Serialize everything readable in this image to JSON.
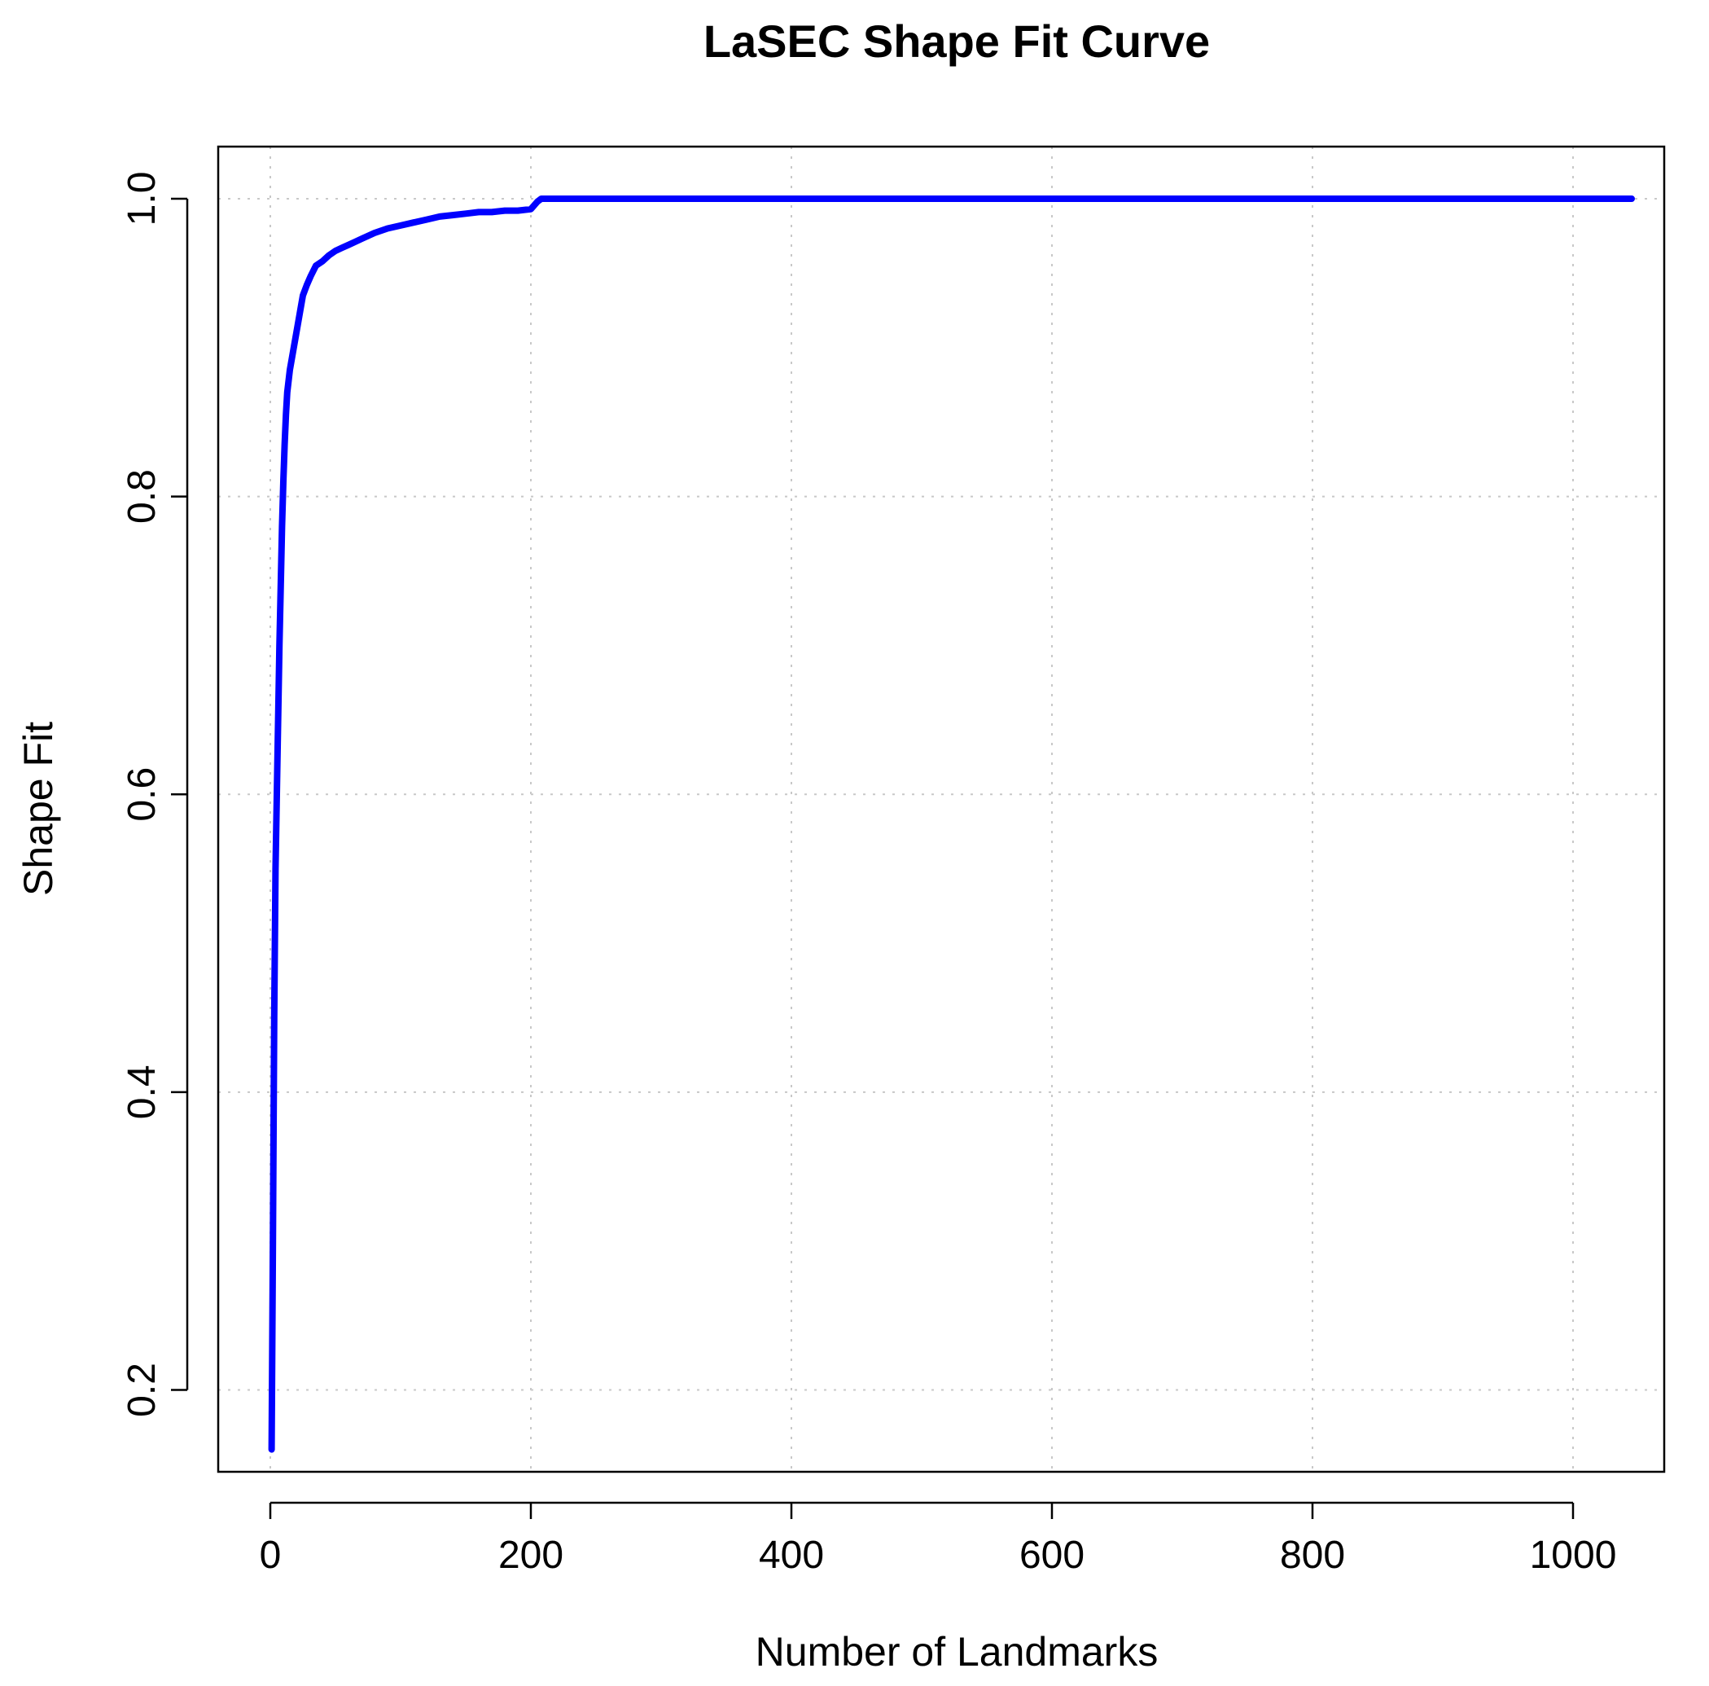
{
  "chart_data": {
    "type": "line",
    "title": "LaSEC Shape Fit Curve",
    "xlabel": "Number of Landmarks",
    "ylabel": "Shape Fit",
    "xlim": [
      -40,
      1070
    ],
    "ylim": [
      0.145,
      1.035
    ],
    "xticks": [
      0,
      200,
      400,
      600,
      800,
      1000
    ],
    "xtick_labels": [
      "0",
      "200",
      "400",
      "600",
      "800",
      "1000"
    ],
    "yticks": [
      0.2,
      0.4,
      0.6,
      0.8,
      1.0
    ],
    "ytick_labels": [
      "0.2",
      "0.4",
      "0.6",
      "0.8",
      "1.0"
    ],
    "grid": true,
    "series": [
      {
        "color": "#0000ff",
        "x": [
          1,
          2,
          3,
          4,
          5,
          6,
          7,
          8,
          9,
          10,
          11,
          12,
          13,
          15,
          17,
          19,
          21,
          23,
          25,
          28,
          31,
          35,
          40,
          45,
          50,
          55,
          60,
          65,
          70,
          80,
          90,
          100,
          110,
          120,
          130,
          140,
          150,
          160,
          170,
          180,
          190,
          200,
          202,
          205,
          208,
          210,
          300,
          400,
          500,
          600,
          700,
          800,
          900,
          1000,
          1045
        ],
        "y": [
          0.16,
          0.3,
          0.45,
          0.55,
          0.6,
          0.65,
          0.7,
          0.74,
          0.78,
          0.81,
          0.835,
          0.855,
          0.87,
          0.885,
          0.895,
          0.905,
          0.915,
          0.925,
          0.935,
          0.942,
          0.948,
          0.955,
          0.958,
          0.962,
          0.965,
          0.967,
          0.969,
          0.971,
          0.973,
          0.977,
          0.98,
          0.982,
          0.984,
          0.986,
          0.988,
          0.989,
          0.99,
          0.991,
          0.991,
          0.992,
          0.992,
          0.993,
          0.995,
          0.998,
          1.0,
          1.0,
          1.0,
          1.0,
          1.0,
          1.0,
          1.0,
          1.0,
          1.0,
          1.0,
          1.0
        ]
      }
    ]
  }
}
